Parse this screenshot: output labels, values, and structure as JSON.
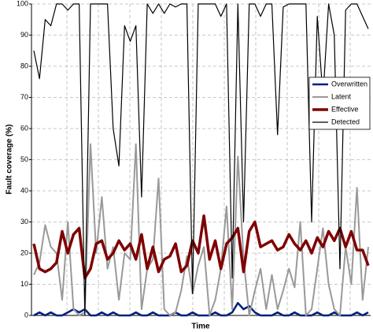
{
  "chart_data": {
    "type": "line",
    "x_label": "Time",
    "y_label": "Fault coverage (%)",
    "categories": [
      null,
      null,
      null,
      null,
      null,
      null,
      null,
      null,
      null,
      null,
      null,
      null,
      null,
      null,
      null,
      null,
      null,
      null,
      null,
      null,
      null,
      null,
      null,
      null,
      null,
      null,
      null,
      null,
      null,
      null,
      null,
      null,
      null,
      null,
      null,
      null,
      null,
      null,
      null,
      null,
      null,
      null,
      null,
      null,
      null,
      null,
      null,
      null,
      null,
      null,
      null,
      null,
      null,
      null,
      null,
      null,
      null,
      null,
      null,
      null
    ],
    "ylim": [
      0,
      100
    ],
    "yticks": [
      0,
      10,
      20,
      30,
      40,
      50,
      60,
      70,
      80,
      90,
      100
    ],
    "grid": true,
    "legend": "right",
    "series": [
      {
        "name": "Overwritten",
        "color": "#001f7f",
        "width": 2.5,
        "values": [
          0,
          1,
          0,
          1,
          0,
          0,
          1,
          2,
          1,
          2,
          0,
          0,
          1,
          0,
          1,
          0,
          0,
          0,
          1,
          0,
          0,
          1,
          0,
          0,
          0,
          1,
          0,
          0,
          1,
          0,
          0,
          0,
          1,
          0,
          0,
          1,
          4,
          2,
          3,
          1,
          0,
          0,
          0,
          1,
          0,
          0,
          1,
          0,
          0,
          0,
          1,
          0,
          0,
          1,
          0,
          0,
          0,
          1,
          0,
          1
        ]
      },
      {
        "name": "Latent",
        "color": "#999999",
        "width": 2,
        "values": [
          13,
          17,
          29,
          22,
          20,
          5,
          30,
          2,
          0,
          1,
          55,
          20,
          38,
          15,
          22,
          5,
          20,
          18,
          55,
          2,
          15,
          18,
          44,
          2,
          0,
          1,
          8,
          19,
          7,
          16,
          22,
          0,
          5,
          15,
          35,
          2,
          51,
          18,
          0,
          8,
          15,
          2,
          13,
          2,
          8,
          15,
          9,
          30,
          0,
          2,
          15,
          28,
          10,
          2,
          0,
          22,
          10,
          41,
          5,
          22
        ]
      },
      {
        "name": "Effective",
        "color": "#7f0000",
        "width": 3.5,
        "values": [
          23,
          15,
          14,
          15,
          17,
          27,
          20,
          26,
          28,
          12,
          15,
          23,
          24,
          18,
          20,
          24,
          21,
          23,
          18,
          26,
          15,
          22,
          14,
          18,
          19,
          23,
          14,
          16,
          24,
          20,
          32,
          18,
          24,
          15,
          23,
          25,
          28,
          14,
          27,
          30,
          22,
          23,
          24,
          21,
          22,
          26,
          23,
          21,
          24,
          20,
          25,
          22,
          27,
          24,
          28,
          22,
          27,
          21,
          21,
          16
        ]
      },
      {
        "name": "Detected",
        "color": "#000000",
        "width": 1.2,
        "values": [
          85,
          76,
          95,
          93,
          100,
          100,
          98,
          100,
          100,
          0,
          100,
          100,
          100,
          100,
          60,
          48,
          93,
          88,
          93,
          38,
          100,
          97,
          100,
          97,
          100,
          99,
          100,
          100,
          7,
          100,
          100,
          100,
          100,
          96,
          100,
          12,
          100,
          30,
          100,
          100,
          96,
          100,
          100,
          58,
          99,
          100,
          100,
          100,
          100,
          30,
          96,
          70,
          100,
          90,
          15,
          98,
          100,
          100,
          96,
          92
        ]
      }
    ]
  }
}
